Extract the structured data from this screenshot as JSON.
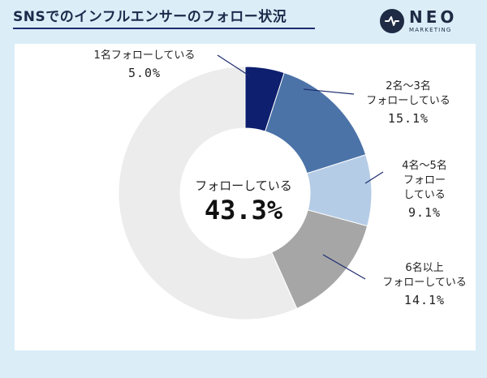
{
  "header": {
    "title": "SNSでのインフルエンサーのフォロー状況",
    "logo_text": "NEO",
    "logo_sub": "MARKETING"
  },
  "chart_data": {
    "type": "pie",
    "variant": "donut",
    "center_caption": "フォローしている",
    "center_value": "43.3%",
    "slices": [
      {
        "label_lines": [
          "1名フォローしている"
        ],
        "value": 5.0,
        "value_text": "5.0%",
        "color": "#0d1f6e"
      },
      {
        "label_lines": [
          "2名～3名",
          "フォローしている"
        ],
        "value": 15.1,
        "value_text": "15.1%",
        "color": "#4b73a8"
      },
      {
        "label_lines": [
          "4名～5名",
          "フォロー",
          "している"
        ],
        "value": 9.1,
        "value_text": "9.1%",
        "color": "#b5cce6"
      },
      {
        "label_lines": [
          "6名以上",
          "フォローしている"
        ],
        "value": 14.1,
        "value_text": "14.1%",
        "color": "#a6a6a6"
      },
      {
        "label_lines": [],
        "value": 56.7,
        "value_text": "",
        "color": "#ececec"
      }
    ],
    "legend": false
  }
}
